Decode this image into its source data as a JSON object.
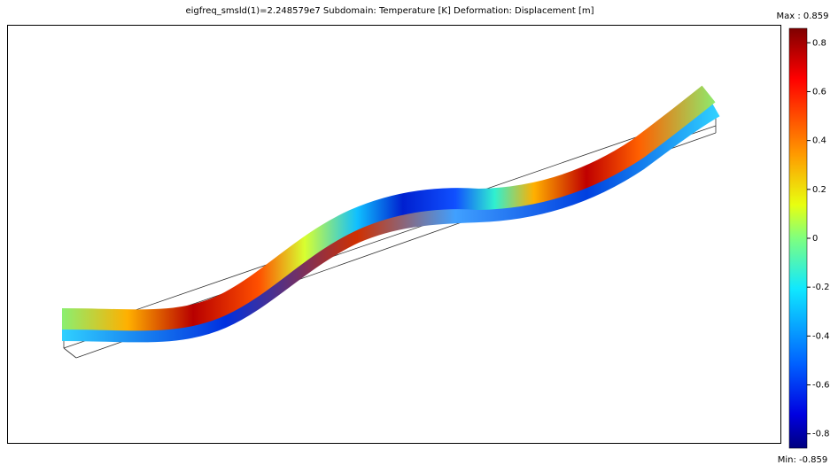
{
  "plot": {
    "title": "eigfreq_smsld(1)=2.248579e7    Subdomain: Temperature [K]   Deformation: Displacement [m]"
  },
  "colorbar": {
    "max_label": "Max : 0.859",
    "min_label": "Min: -0.859",
    "lim": [
      -0.859,
      0.859
    ],
    "ticks": [
      0.8,
      0.6,
      0.4,
      0.2,
      0,
      -0.2,
      -0.4,
      -0.6,
      -0.8
    ]
  }
}
